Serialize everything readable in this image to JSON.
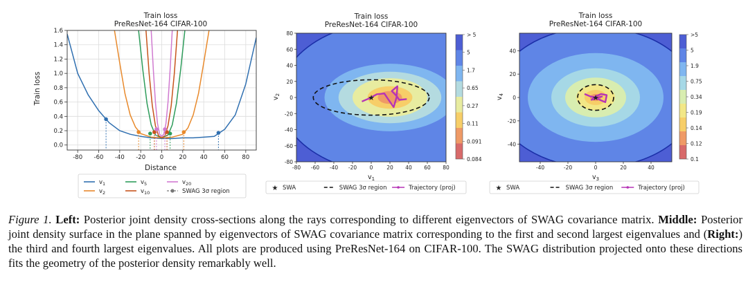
{
  "panels": {
    "left": {
      "title_1": "Train loss",
      "title_2": "PreResNet-164 CIFAR-100",
      "xlabel": "Distance",
      "ylabel": "Train loss"
    },
    "middle": {
      "title_1": "Train loss",
      "title_2": "PreResNet-164 CIFAR-100",
      "xlabel": "v",
      "xlabel_sub": "1",
      "ylabel": "v",
      "ylabel_sub": "2",
      "colorbar_ticks": [
        "> 5",
        "5",
        "1.7",
        "0.65",
        "0.27",
        "0.11",
        "0.091",
        "0.084"
      ]
    },
    "right": {
      "title_1": "Train loss",
      "title_2": "PreResNet-164 CIFAR-100",
      "xlabel": "v",
      "xlabel_sub": "3",
      "ylabel": "v",
      "ylabel_sub": "4",
      "colorbar_ticks": [
        ">5",
        "5",
        "1.9",
        "0.75",
        "0.34",
        "0.19",
        "0.14",
        "0.12",
        "0.1"
      ]
    }
  },
  "legends": {
    "left": [
      {
        "label": "v",
        "sub": "1",
        "color": "#2f6fb0",
        "style": "line"
      },
      {
        "label": "v",
        "sub": "2",
        "color": "#e8892b",
        "style": "line"
      },
      {
        "label": "v",
        "sub": "5",
        "color": "#2e9c5b",
        "style": "line"
      },
      {
        "label": "v",
        "sub": "10",
        "color": "#c7541c",
        "style": "line"
      },
      {
        "label": "v",
        "sub": "20",
        "color": "#d07ad0",
        "style": "line"
      },
      {
        "label": "SWAG 3σ region",
        "sub": "",
        "color": "#777777",
        "style": "dashdot"
      }
    ],
    "middle": [
      {
        "label": "SWA",
        "marker": "★"
      },
      {
        "label": "SWAG 3σ region",
        "marker": "dash"
      },
      {
        "label": "Trajectory (proj)",
        "marker": "traj"
      }
    ],
    "right": [
      {
        "label": "SWA",
        "marker": "★"
      },
      {
        "label": "SWAG 3σ region",
        "marker": "dash"
      },
      {
        "label": "Trajectory (proj)",
        "marker": "traj"
      }
    ]
  },
  "chart_data": [
    {
      "type": "line",
      "title": "Train loss\nPreResNet-164 CIFAR-100",
      "xlabel": "Distance",
      "ylabel": "Train loss",
      "xlim": [
        -90,
        90
      ],
      "ylim": [
        -0.07,
        1.6
      ],
      "xticks": [
        -80,
        -60,
        -40,
        -20,
        0,
        20,
        40,
        60,
        80
      ],
      "yticks": [
        0.0,
        0.2,
        0.4,
        0.6,
        0.8,
        1.0,
        1.2,
        1.4,
        1.6
      ],
      "grid": true,
      "series": [
        {
          "name": "v1",
          "color": "#2f6fb0",
          "x": [
            -90,
            -80,
            -70,
            -60,
            -50,
            -40,
            -30,
            -20,
            -10,
            0,
            10,
            20,
            30,
            40,
            50,
            60,
            70,
            80,
            90
          ],
          "y": [
            1.55,
            1.0,
            0.7,
            0.48,
            0.31,
            0.2,
            0.15,
            0.12,
            0.1,
            0.09,
            0.09,
            0.1,
            0.1,
            0.11,
            0.12,
            0.22,
            0.42,
            0.85,
            1.5
          ],
          "swag_points": [
            [
              -53,
              0.36
            ],
            [
              54,
              0.17
            ]
          ]
        },
        {
          "name": "v2",
          "color": "#e8892b",
          "x": [
            -45,
            -40,
            -35,
            -30,
            -25,
            -20,
            -10,
            0,
            10,
            20,
            25,
            30,
            35,
            40,
            45
          ],
          "y": [
            1.6,
            1.15,
            0.72,
            0.42,
            0.25,
            0.16,
            0.11,
            0.1,
            0.11,
            0.15,
            0.24,
            0.42,
            0.72,
            1.15,
            1.6
          ],
          "swag_points": [
            [
              -22,
              0.18
            ],
            [
              21,
              0.18
            ]
          ]
        },
        {
          "name": "v5",
          "color": "#2e9c5b",
          "x": [
            -22,
            -18,
            -14,
            -10,
            -6,
            0,
            6,
            10,
            14,
            18,
            22
          ],
          "y": [
            1.6,
            1.05,
            0.58,
            0.28,
            0.14,
            0.1,
            0.14,
            0.28,
            0.58,
            1.05,
            1.6
          ],
          "swag_points": [
            [
              -11,
              0.16
            ],
            [
              8,
              0.16
            ]
          ]
        },
        {
          "name": "v10",
          "color": "#c7541c",
          "x": [
            -15,
            -12,
            -9,
            -6,
            -3,
            0,
            3,
            6,
            9,
            12,
            15
          ],
          "y": [
            1.6,
            1.0,
            0.55,
            0.27,
            0.13,
            0.1,
            0.13,
            0.27,
            0.55,
            1.0,
            1.6
          ],
          "swag_points": [
            [
              -7,
              0.18
            ],
            [
              5,
              0.18
            ]
          ]
        },
        {
          "name": "v20",
          "color": "#d07ad0",
          "x": [
            -10,
            -8,
            -6,
            -4,
            -2,
            0,
            2,
            4,
            6,
            8,
            10
          ],
          "y": [
            1.6,
            1.05,
            0.6,
            0.3,
            0.15,
            0.12,
            0.15,
            0.3,
            0.6,
            1.05,
            1.6
          ],
          "swag_points": [
            [
              -5,
              0.22
            ],
            [
              3,
              0.22
            ]
          ]
        }
      ]
    },
    {
      "type": "heatmap",
      "title": "Train loss\nPreResNet-164 CIFAR-100",
      "xlabel": "v1",
      "ylabel": "v2",
      "xlim": [
        -80,
        80
      ],
      "ylim": [
        -80,
        80
      ],
      "xticks": [
        -80,
        -60,
        -40,
        -20,
        0,
        20,
        40,
        60,
        80
      ],
      "yticks": [
        -80,
        -60,
        -40,
        -20,
        0,
        20,
        40,
        60,
        80
      ],
      "levels": [
        {
          "label": "> 5",
          "color": "#4d5ed4"
        },
        {
          "label": "5",
          "color": "#5f85e6"
        },
        {
          "label": "1.7",
          "color": "#7fb6f0"
        },
        {
          "label": "0.65",
          "color": "#b4dbe0"
        },
        {
          "label": "0.27",
          "color": "#e8eca0"
        },
        {
          "label": "0.11",
          "color": "#f7ce68"
        },
        {
          "label": "0.091",
          "color": "#ef9a66"
        },
        {
          "label": "0.084",
          "color": "#d86a6a"
        }
      ],
      "contour_radii": [
        [
          118,
          94
        ],
        [
          70,
          42
        ],
        [
          55,
          32
        ],
        [
          40,
          24
        ],
        [
          24,
          14
        ],
        [
          13,
          8
        ]
      ],
      "contour_center": [
        20,
        0
      ],
      "swag_ellipse": {
        "center": [
          0,
          0
        ],
        "radii": [
          62,
          22
        ]
      },
      "swa": [
        0,
        0
      ],
      "trajectory": [
        [
          -10,
          -5
        ],
        [
          -2,
          -1
        ],
        [
          6,
          4
        ],
        [
          14,
          5
        ],
        [
          18,
          -2
        ],
        [
          24,
          -12
        ],
        [
          27,
          0
        ],
        [
          28,
          14
        ],
        [
          22,
          8
        ],
        [
          27,
          2
        ],
        [
          30,
          -3
        ],
        [
          38,
          -2
        ]
      ]
    },
    {
      "type": "heatmap",
      "title": "Train loss\nPreResNet-164 CIFAR-100",
      "xlabel": "v3",
      "ylabel": "v4",
      "xlim": [
        -55,
        55
      ],
      "ylim": [
        -55,
        55
      ],
      "xticks": [
        -40,
        -20,
        0,
        20,
        40
      ],
      "yticks": [
        -40,
        -20,
        0,
        20,
        40
      ],
      "levels": [
        {
          "label": ">5",
          "color": "#4d5ed4"
        },
        {
          "label": "5",
          "color": "#5f85e6"
        },
        {
          "label": "1.9",
          "color": "#7fb6f0"
        },
        {
          "label": "0.75",
          "color": "#a6d8e6"
        },
        {
          "label": "0.34",
          "color": "#d8edb0"
        },
        {
          "label": "0.19",
          "color": "#f2e786"
        },
        {
          "label": "0.14",
          "color": "#f7ce68"
        },
        {
          "label": "0.12",
          "color": "#ef9a66"
        },
        {
          "label": "0.1",
          "color": "#d86a6a"
        }
      ],
      "contour_radii": [
        [
          73,
          60
        ],
        [
          49,
          38
        ],
        [
          32,
          25
        ],
        [
          22,
          17
        ],
        [
          14,
          11
        ],
        [
          8,
          6.5
        ],
        [
          4,
          3
        ]
      ],
      "contour_center": [
        0,
        0
      ],
      "swag_ellipse": {
        "center": [
          0,
          0
        ],
        "radii": [
          13,
          11
        ]
      },
      "swa": [
        0,
        0
      ],
      "trajectory": [
        [
          -8,
          3
        ],
        [
          -4,
          1
        ],
        [
          0,
          0
        ],
        [
          3,
          -2
        ],
        [
          7,
          -4
        ],
        [
          8,
          2
        ],
        [
          4,
          3
        ],
        [
          0,
          1
        ],
        [
          -3,
          -2
        ],
        [
          2,
          0
        ],
        [
          5,
          1
        ]
      ]
    }
  ],
  "caption": {
    "label": "Figure 1.",
    "left_head": "Left:",
    "left_text": "Posterior joint density cross-sections along the rays corresponding to different eigenvectors of SWAG covariance matrix.",
    "middle_head": "Middle:",
    "middle_text": "Posterior joint density surface in the plane spanned by eigenvectors of SWAG covariance matrix corresponding to the first and second largest eigenvalues and (",
    "right_head": "Right:",
    "right_text": ") the third and fourth largest eigenvalues. All plots are produced using PreResNet-164 on CIFAR-100. The SWAG distribution projected onto these directions fits the geometry of the posterior density remarkably well."
  }
}
